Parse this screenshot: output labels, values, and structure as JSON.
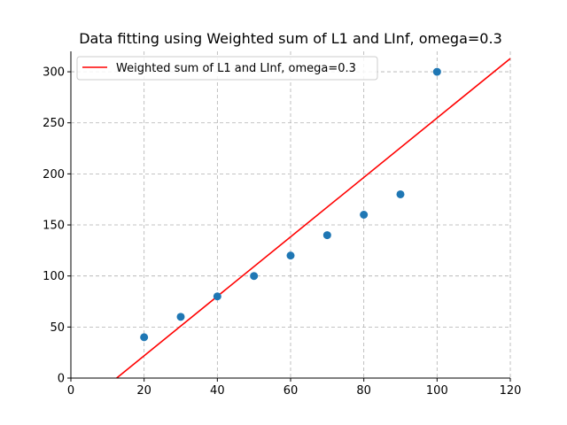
{
  "chart_data": {
    "type": "scatter",
    "title": "Data fitting using Weighted sum of L1 and LInf, omega=0.3",
    "xlabel": "",
    "ylabel": "",
    "xlim": [
      0,
      120
    ],
    "ylim": [
      0,
      320
    ],
    "x_ticks": [
      0,
      20,
      40,
      60,
      80,
      100,
      120
    ],
    "y_ticks": [
      0,
      50,
      100,
      150,
      200,
      250,
      300
    ],
    "grid": true,
    "legend_position": "top-left",
    "points": {
      "color": "#1f77b4",
      "x": [
        20,
        30,
        40,
        50,
        60,
        70,
        80,
        90,
        100
      ],
      "y": [
        40,
        60,
        80,
        100,
        120,
        140,
        160,
        180,
        300
      ]
    },
    "series": [
      {
        "name": "Weighted sum of L1 and LInf, omega=0.3",
        "type": "line",
        "color": "#ff0000",
        "x": [
          12.5,
          120
        ],
        "y": [
          0,
          313
        ]
      }
    ]
  }
}
